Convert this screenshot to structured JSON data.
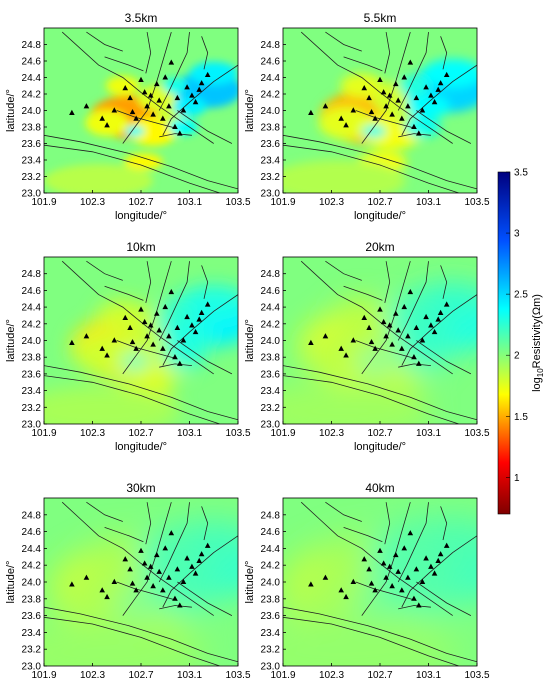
{
  "figure": {
    "colorbar": {
      "label_prefix": "log",
      "label_sub": "10",
      "label_rest": "Resistivity(Ωm)",
      "range": [
        0.7,
        3.5
      ],
      "ticks": [
        "1",
        "1.5",
        "2",
        "2.5",
        "3",
        "3.5"
      ],
      "colormap": "jet-reversed (red low, blue high)"
    }
  },
  "chart_data": [
    {
      "type": "heatmap",
      "title": "3.5km",
      "xlabel": "longitude/°",
      "ylabel": "latitude/°",
      "xlim": [
        101.9,
        103.5
      ],
      "ylim": [
        23.0,
        25.0
      ],
      "xticks": [
        "101.9",
        "102.3",
        "102.7",
        "103.1",
        "103.5"
      ],
      "yticks": [
        "23.0",
        "23.2",
        "23.4",
        "23.6",
        "23.8",
        "24.0",
        "24.2",
        "24.4",
        "24.6",
        "24.8"
      ]
    },
    {
      "type": "heatmap",
      "title": "5.5km",
      "xlabel": "longitude/°",
      "ylabel": "latitude/°",
      "xlim": [
        101.9,
        103.5
      ],
      "ylim": [
        23.0,
        25.0
      ],
      "xticks": [
        "101.9",
        "102.3",
        "102.7",
        "103.1",
        "103.5"
      ],
      "yticks": [
        "23.0",
        "23.2",
        "23.4",
        "23.6",
        "23.8",
        "24.0",
        "24.2",
        "24.4",
        "24.6",
        "24.8"
      ]
    },
    {
      "type": "heatmap",
      "title": "10km",
      "xlabel": "longitude/°",
      "ylabel": "latitude/°",
      "xlim": [
        101.9,
        103.5
      ],
      "ylim": [
        23.0,
        25.0
      ],
      "xticks": [
        "101.9",
        "102.3",
        "102.7",
        "103.1",
        "103.5"
      ],
      "yticks": [
        "23.0",
        "23.2",
        "23.4",
        "23.6",
        "23.8",
        "24.0",
        "24.2",
        "24.4",
        "24.6",
        "24.8"
      ]
    },
    {
      "type": "heatmap",
      "title": "20km",
      "xlabel": "longitude/°",
      "ylabel": "latitude/°",
      "xlim": [
        101.9,
        103.5
      ],
      "ylim": [
        23.0,
        25.0
      ],
      "xticks": [
        "101.9",
        "102.3",
        "102.7",
        "103.1",
        "103.5"
      ],
      "yticks": [
        "23.0",
        "23.2",
        "23.4",
        "23.6",
        "23.8",
        "24.0",
        "24.2",
        "24.4",
        "24.6",
        "24.8"
      ]
    },
    {
      "type": "heatmap",
      "title": "30km",
      "xlabel": "",
      "ylabel": "latitude/°",
      "xlim": [
        101.9,
        103.5
      ],
      "ylim": [
        23.0,
        25.0
      ],
      "xticks": [
        "101.9",
        "102.3",
        "102.7",
        "103.1",
        "103.5"
      ],
      "yticks": [
        "23.0",
        "23.2",
        "23.4",
        "23.6",
        "23.8",
        "24.0",
        "24.2",
        "24.4",
        "24.6",
        "24.8"
      ]
    },
    {
      "type": "heatmap",
      "title": "40km",
      "xlabel": "",
      "ylabel": "latitude/°",
      "xlim": [
        101.9,
        103.5
      ],
      "ylim": [
        23.0,
        25.0
      ],
      "xticks": [
        "101.9",
        "102.3",
        "102.7",
        "103.1",
        "103.5"
      ],
      "yticks": [
        "23.0",
        "23.2",
        "23.4",
        "23.6",
        "23.8",
        "24.0",
        "24.2",
        "24.4",
        "24.6",
        "24.8"
      ]
    }
  ],
  "stations": [
    [
      102.13,
      23.97
    ],
    [
      102.25,
      24.05
    ],
    [
      102.38,
      23.9
    ],
    [
      102.42,
      23.82
    ],
    [
      102.48,
      24.0
    ],
    [
      102.57,
      24.27
    ],
    [
      102.61,
      24.15
    ],
    [
      102.63,
      23.98
    ],
    [
      102.66,
      23.9
    ],
    [
      102.7,
      24.37
    ],
    [
      102.73,
      24.22
    ],
    [
      102.75,
      24.05
    ],
    [
      102.78,
      24.18
    ],
    [
      102.8,
      23.95
    ],
    [
      102.83,
      24.32
    ],
    [
      102.85,
      24.12
    ],
    [
      102.88,
      23.9
    ],
    [
      102.9,
      24.4
    ],
    [
      102.93,
      24.05
    ],
    [
      102.95,
      24.58
    ],
    [
      102.98,
      23.8
    ],
    [
      103.0,
      24.15
    ],
    [
      103.02,
      23.72
    ],
    [
      103.05,
      24.0
    ],
    [
      103.08,
      24.28
    ],
    [
      103.12,
      24.18
    ],
    [
      103.15,
      24.1
    ],
    [
      103.18,
      24.25
    ],
    [
      103.2,
      24.33
    ],
    [
      103.25,
      24.43
    ]
  ],
  "anomalies": [
    {
      "x": 102.6,
      "y": 23.92,
      "rx": 0.32,
      "ry": 0.26,
      "v": -0.55
    },
    {
      "x": 102.42,
      "y": 23.85,
      "rx": 0.18,
      "ry": 0.16,
      "v": -0.3
    },
    {
      "x": 102.8,
      "y": 23.75,
      "rx": 0.2,
      "ry": 0.18,
      "v": -0.35
    },
    {
      "x": 102.72,
      "y": 23.38,
      "rx": 0.16,
      "ry": 0.1,
      "v": -0.35
    },
    {
      "x": 102.85,
      "y": 24.15,
      "rx": 0.18,
      "ry": 0.16,
      "v": -0.25
    },
    {
      "x": 102.55,
      "y": 24.3,
      "rx": 0.14,
      "ry": 0.12,
      "v": -0.3
    },
    {
      "x": 102.95,
      "y": 23.95,
      "rx": 0.12,
      "ry": 0.1,
      "v": -0.2
    },
    {
      "x": 103.25,
      "y": 24.25,
      "rx": 0.28,
      "ry": 0.22,
      "v": 0.55
    },
    {
      "x": 103.1,
      "y": 24.05,
      "rx": 0.14,
      "ry": 0.12,
      "v": 0.4
    },
    {
      "x": 103.3,
      "y": 24.45,
      "rx": 0.2,
      "ry": 0.14,
      "v": 0.4
    },
    {
      "x": 103.05,
      "y": 23.8,
      "rx": 0.12,
      "ry": 0.1,
      "v": 0.35
    },
    {
      "x": 102.98,
      "y": 24.3,
      "rx": 0.1,
      "ry": 0.1,
      "v": 0.3
    },
    {
      "x": 102.65,
      "y": 23.75,
      "rx": 0.08,
      "ry": 0.06,
      "v": 0.35
    },
    {
      "x": 102.35,
      "y": 23.15,
      "rx": 0.45,
      "ry": 0.2,
      "v": -0.15
    }
  ],
  "faults": [
    [
      [
        101.9,
        23.7
      ],
      [
        102.2,
        23.62
      ],
      [
        102.6,
        23.48
      ],
      [
        102.95,
        23.32
      ],
      [
        103.25,
        23.15
      ],
      [
        103.5,
        23.05
      ]
    ],
    [
      [
        101.9,
        23.58
      ],
      [
        102.3,
        23.5
      ],
      [
        102.7,
        23.34
      ],
      [
        103.1,
        23.12
      ],
      [
        103.35,
        23.0
      ]
    ],
    [
      [
        102.05,
        24.95
      ],
      [
        102.2,
        24.75
      ],
      [
        102.35,
        24.55
      ],
      [
        102.55,
        24.4
      ],
      [
        102.7,
        24.22
      ],
      [
        102.85,
        24.05
      ],
      [
        103.05,
        23.85
      ],
      [
        103.3,
        23.6
      ]
    ],
    [
      [
        102.25,
        24.95
      ],
      [
        102.4,
        24.8
      ],
      [
        102.55,
        24.72
      ]
    ],
    [
      [
        102.4,
        24.65
      ],
      [
        102.6,
        24.55
      ],
      [
        102.72,
        24.48
      ]
    ],
    [
      [
        102.75,
        24.95
      ],
      [
        102.78,
        24.7
      ],
      [
        102.74,
        24.45
      ]
    ],
    [
      [
        102.95,
        24.95
      ],
      [
        102.88,
        24.6
      ],
      [
        102.82,
        24.3
      ],
      [
        102.75,
        24.0
      ],
      [
        102.65,
        23.8
      ],
      [
        102.55,
        23.6
      ]
    ],
    [
      [
        103.1,
        24.95
      ],
      [
        103.08,
        24.7
      ],
      [
        103.0,
        24.45
      ],
      [
        102.92,
        24.2
      ],
      [
        102.85,
        24.0
      ]
    ],
    [
      [
        103.2,
        24.9
      ],
      [
        103.25,
        24.7
      ],
      [
        103.22,
        24.5
      ]
    ],
    [
      [
        103.5,
        24.55
      ],
      [
        103.3,
        24.35
      ],
      [
        103.1,
        24.1
      ],
      [
        102.95,
        23.9
      ],
      [
        102.88,
        23.7
      ]
    ],
    [
      [
        103.0,
        24.0
      ],
      [
        103.1,
        23.9
      ],
      [
        103.25,
        23.75
      ],
      [
        103.45,
        23.6
      ]
    ],
    [
      [
        102.5,
        24.0
      ],
      [
        102.65,
        23.92
      ],
      [
        102.8,
        23.86
      ],
      [
        103.0,
        23.78
      ]
    ],
    [
      [
        102.85,
        23.68
      ],
      [
        102.98,
        23.72
      ],
      [
        103.12,
        23.7
      ]
    ]
  ]
}
